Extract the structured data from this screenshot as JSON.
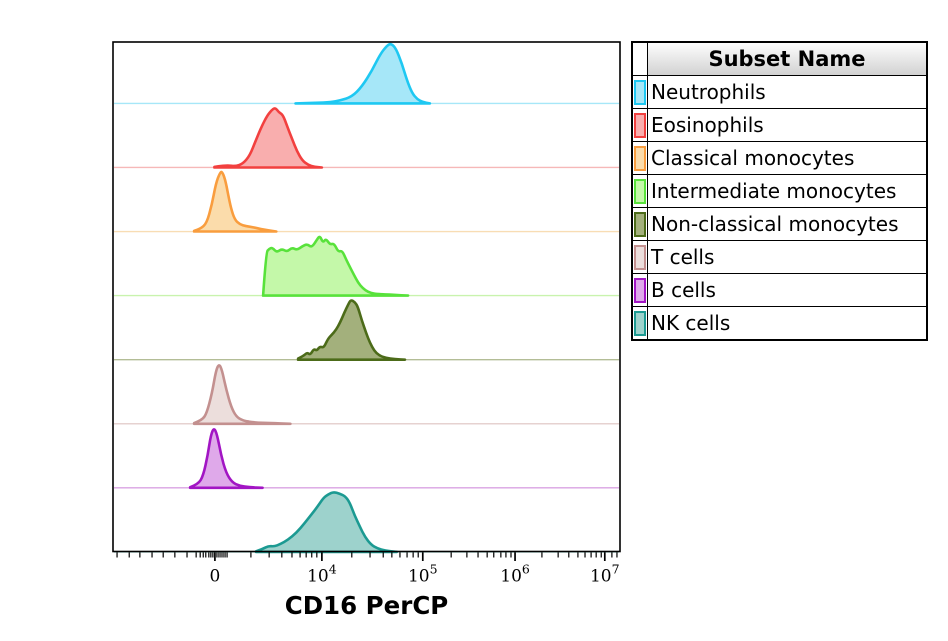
{
  "page": {
    "background": "#ffffff"
  },
  "legend": {
    "title": "Subset Name"
  },
  "chart_data": {
    "type": "area",
    "subtype": "flow-cytometry-histogram-ridgeline",
    "title": "",
    "xlabel": "CD16 PerCP",
    "ylabel": "",
    "grid": false,
    "legend_position": "right-table",
    "x_axis": {
      "scale": "biexponential",
      "major_ticks": [
        {
          "label": "0",
          "u": 0.201
        },
        {
          "base": "10",
          "exp": "4",
          "u": 0.412
        },
        {
          "base": "10",
          "exp": "5",
          "u": 0.611
        },
        {
          "base": "10",
          "exp": "6",
          "u": 0.793
        },
        {
          "base": "10",
          "exp": "7",
          "u": 0.97
        }
      ],
      "minor_ticks_u": [
        0.008,
        0.032,
        0.053,
        0.077,
        0.099,
        0.122,
        0.146,
        0.164,
        0.172,
        0.178,
        0.183,
        0.189,
        0.193,
        0.197,
        0.205,
        0.209,
        0.213,
        0.217,
        0.221,
        0.225,
        0.272,
        0.308,
        0.333,
        0.353,
        0.369,
        0.381,
        0.392,
        0.402,
        0.471,
        0.507,
        0.533,
        0.55,
        0.566,
        0.58,
        0.592,
        0.602,
        0.667,
        0.698,
        0.72,
        0.738,
        0.751,
        0.765,
        0.775,
        0.785,
        0.846,
        0.878,
        0.899,
        0.917,
        0.931,
        0.943,
        0.953,
        0.963,
        0.984,
        0.994
      ]
    },
    "y_axis": {
      "note": "each subset histogram normalized to its mode; no y ticks shown"
    },
    "series": [
      {
        "name": "Neutrophils",
        "stroke": "#1ec8f2",
        "fill": "#a6e7f8",
        "baseline_color": "#a6e7f8",
        "peak_estimate": "~5x10^4",
        "points": [
          [
            0.36,
            0
          ],
          [
            0.4,
            0.01
          ],
          [
            0.43,
            0.02
          ],
          [
            0.448,
            0.05
          ],
          [
            0.471,
            0.11
          ],
          [
            0.491,
            0.28
          ],
          [
            0.511,
            0.55
          ],
          [
            0.527,
            0.82
          ],
          [
            0.54,
            0.96
          ],
          [
            0.548,
            1.0
          ],
          [
            0.558,
            0.92
          ],
          [
            0.57,
            0.66
          ],
          [
            0.58,
            0.38
          ],
          [
            0.59,
            0.17
          ],
          [
            0.6,
            0.07
          ],
          [
            0.611,
            0.02
          ],
          [
            0.625,
            0
          ]
        ]
      },
      {
        "name": "Eosinophils",
        "stroke": "#f2403f",
        "fill": "#f9aeae",
        "baseline_color": "#f6b8b8",
        "peak_estimate": "~3x10^3",
        "points": [
          [
            0.2,
            0.01
          ],
          [
            0.207,
            0.02
          ],
          [
            0.227,
            0.035
          ],
          [
            0.241,
            0.02
          ],
          [
            0.256,
            0.06
          ],
          [
            0.27,
            0.2
          ],
          [
            0.282,
            0.46
          ],
          [
            0.294,
            0.7
          ],
          [
            0.304,
            0.86
          ],
          [
            0.312,
            0.95
          ],
          [
            0.32,
            1.0
          ],
          [
            0.327,
            0.92
          ],
          [
            0.335,
            0.88
          ],
          [
            0.343,
            0.7
          ],
          [
            0.353,
            0.48
          ],
          [
            0.363,
            0.27
          ],
          [
            0.373,
            0.12
          ],
          [
            0.385,
            0.04
          ],
          [
            0.398,
            0.01
          ],
          [
            0.412,
            0
          ]
        ]
      },
      {
        "name": "Classical monocytes",
        "stroke": "#f99d3e",
        "fill": "#fbdcab",
        "baseline_color": "#f8ddb4",
        "peak_estimate": "~1x10^3",
        "points": [
          [
            0.16,
            0.01
          ],
          [
            0.172,
            0.04
          ],
          [
            0.185,
            0.14
          ],
          [
            0.195,
            0.45
          ],
          [
            0.203,
            0.8
          ],
          [
            0.211,
            0.98
          ],
          [
            0.215,
            1.0
          ],
          [
            0.221,
            0.88
          ],
          [
            0.227,
            0.62
          ],
          [
            0.233,
            0.38
          ],
          [
            0.24,
            0.2
          ],
          [
            0.25,
            0.12
          ],
          [
            0.262,
            0.09
          ],
          [
            0.277,
            0.07
          ],
          [
            0.292,
            0.04
          ],
          [
            0.306,
            0.02
          ],
          [
            0.322,
            0
          ]
        ]
      },
      {
        "name": "Intermediate monocytes",
        "stroke": "#58e23b",
        "fill": "#c4f8a9",
        "baseline_color": "#c9f3ae",
        "peak_estimate": "broad 2x10^3 - 2x10^4, mode ~1x10^4",
        "points": [
          [
            0.296,
            0
          ],
          [
            0.302,
            0.72
          ],
          [
            0.308,
            0.78
          ],
          [
            0.314,
            0.8
          ],
          [
            0.323,
            0.72
          ],
          [
            0.333,
            0.78
          ],
          [
            0.343,
            0.73
          ],
          [
            0.353,
            0.8
          ],
          [
            0.363,
            0.76
          ],
          [
            0.373,
            0.82
          ],
          [
            0.383,
            0.86
          ],
          [
            0.392,
            0.8
          ],
          [
            0.402,
            0.93
          ],
          [
            0.408,
            1.0
          ],
          [
            0.414,
            0.88
          ],
          [
            0.42,
            0.95
          ],
          [
            0.428,
            0.85
          ],
          [
            0.436,
            0.87
          ],
          [
            0.444,
            0.73
          ],
          [
            0.452,
            0.75
          ],
          [
            0.46,
            0.6
          ],
          [
            0.467,
            0.48
          ],
          [
            0.475,
            0.35
          ],
          [
            0.483,
            0.22
          ],
          [
            0.493,
            0.12
          ],
          [
            0.503,
            0.06
          ],
          [
            0.515,
            0.03
          ],
          [
            0.535,
            0.02
          ],
          [
            0.556,
            0.012
          ],
          [
            0.582,
            0
          ]
        ]
      },
      {
        "name": "Non-classical monocytes",
        "stroke": "#4c6b19",
        "fill": "#a3b07c",
        "baseline_color": "#b3bd96",
        "peak_estimate": "~2x10^4",
        "points": [
          [
            0.365,
            0.02
          ],
          [
            0.375,
            0.06
          ],
          [
            0.383,
            0.12
          ],
          [
            0.389,
            0.08
          ],
          [
            0.396,
            0.18
          ],
          [
            0.402,
            0.15
          ],
          [
            0.408,
            0.22
          ],
          [
            0.416,
            0.2
          ],
          [
            0.424,
            0.35
          ],
          [
            0.432,
            0.42
          ],
          [
            0.44,
            0.5
          ],
          [
            0.448,
            0.62
          ],
          [
            0.456,
            0.78
          ],
          [
            0.464,
            0.92
          ],
          [
            0.469,
            1.0
          ],
          [
            0.477,
            0.96
          ],
          [
            0.483,
            0.88
          ],
          [
            0.491,
            0.65
          ],
          [
            0.499,
            0.45
          ],
          [
            0.507,
            0.28
          ],
          [
            0.515,
            0.15
          ],
          [
            0.525,
            0.07
          ],
          [
            0.538,
            0.03
          ],
          [
            0.556,
            0.01
          ],
          [
            0.576,
            0
          ]
        ]
      },
      {
        "name": "T cells",
        "stroke": "#c3908f",
        "fill": "#ecdedc",
        "baseline_color": "#e6d2d0",
        "peak_estimate": "~1x10^3 (negative)",
        "points": [
          [
            0.16,
            0.01
          ],
          [
            0.176,
            0.06
          ],
          [
            0.185,
            0.18
          ],
          [
            0.195,
            0.5
          ],
          [
            0.203,
            0.88
          ],
          [
            0.209,
            1.0
          ],
          [
            0.215,
            0.9
          ],
          [
            0.223,
            0.58
          ],
          [
            0.233,
            0.28
          ],
          [
            0.243,
            0.12
          ],
          [
            0.256,
            0.05
          ],
          [
            0.28,
            0.02
          ],
          [
            0.31,
            0.012
          ],
          [
            0.35,
            0
          ]
        ]
      },
      {
        "name": "B cells",
        "stroke": "#a215c4",
        "fill": "#dfa9ea",
        "baseline_color": "#d9a3e3",
        "peak_estimate": "~8x10^2 (negative)",
        "points": [
          [
            0.152,
            0.01
          ],
          [
            0.168,
            0.06
          ],
          [
            0.178,
            0.2
          ],
          [
            0.187,
            0.55
          ],
          [
            0.193,
            0.88
          ],
          [
            0.199,
            1.0
          ],
          [
            0.205,
            0.9
          ],
          [
            0.213,
            0.55
          ],
          [
            0.223,
            0.25
          ],
          [
            0.235,
            0.09
          ],
          [
            0.25,
            0.03
          ],
          [
            0.27,
            0.01
          ],
          [
            0.295,
            0
          ]
        ]
      },
      {
        "name": "NK cells",
        "stroke": "#1c9a92",
        "fill": "#9dd2cc",
        "baseline_color": "#9dd2cc",
        "peak_estimate": "~1.5x10^4",
        "points": [
          [
            0.282,
            0.01
          ],
          [
            0.295,
            0.05
          ],
          [
            0.307,
            0.1
          ],
          [
            0.318,
            0.09
          ],
          [
            0.33,
            0.13
          ],
          [
            0.345,
            0.2
          ],
          [
            0.362,
            0.32
          ],
          [
            0.378,
            0.48
          ],
          [
            0.391,
            0.62
          ],
          [
            0.403,
            0.75
          ],
          [
            0.415,
            0.9
          ],
          [
            0.425,
            0.96
          ],
          [
            0.435,
            1.0
          ],
          [
            0.447,
            0.97
          ],
          [
            0.458,
            0.93
          ],
          [
            0.467,
            0.82
          ],
          [
            0.477,
            0.6
          ],
          [
            0.487,
            0.42
          ],
          [
            0.497,
            0.25
          ],
          [
            0.509,
            0.12
          ],
          [
            0.521,
            0.06
          ],
          [
            0.537,
            0.02
          ],
          [
            0.56,
            0
          ]
        ]
      }
    ]
  }
}
